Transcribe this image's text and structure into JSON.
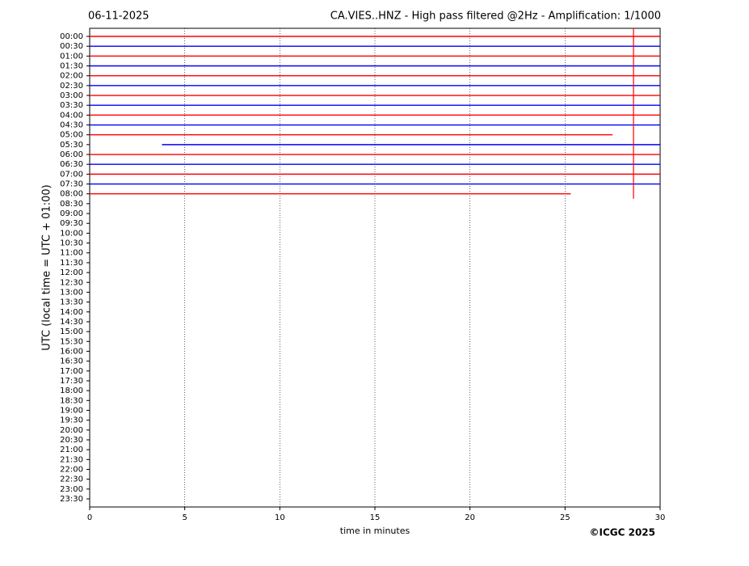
{
  "chart_data": {
    "type": "helicorder",
    "date": "06-11-2025",
    "title": "CA.VIES..HNZ - High pass filtered @2Hz - Amplification: 1/1000",
    "y_label": "UTC (local time = UTC + 01:00)",
    "x_label": "time in minutes",
    "credit": "©ICGC 2025",
    "rows": [
      "00:00",
      "00:30",
      "01:00",
      "01:30",
      "02:00",
      "02:30",
      "03:00",
      "03:30",
      "04:00",
      "04:30",
      "05:00",
      "05:30",
      "06:00",
      "06:30",
      "07:00",
      "07:30",
      "08:00",
      "08:30",
      "09:00",
      "09:30",
      "10:00",
      "10:30",
      "11:00",
      "11:30",
      "12:00",
      "12:30",
      "13:00",
      "13:30",
      "14:00",
      "14:30",
      "15:00",
      "15:30",
      "16:00",
      "16:30",
      "17:00",
      "17:30",
      "18:00",
      "18:30",
      "19:00",
      "19:30",
      "20:00",
      "20:30",
      "21:00",
      "21:30",
      "22:00",
      "22:30",
      "23:00",
      "23:30"
    ],
    "xlim": [
      0,
      30
    ],
    "xticks": [
      0,
      5,
      10,
      15,
      20,
      25,
      30
    ],
    "grid": true,
    "traces": [
      {
        "row": 0,
        "color": "#ff0000",
        "x": [
          0,
          30
        ]
      },
      {
        "row": 1,
        "color": "#0000ff",
        "x": [
          0,
          30
        ]
      },
      {
        "row": 2,
        "color": "#ff0000",
        "x": [
          0,
          30
        ]
      },
      {
        "row": 3,
        "color": "#0000ff",
        "x": [
          0,
          30
        ]
      },
      {
        "row": 4,
        "color": "#ff0000",
        "x": [
          0,
          30
        ]
      },
      {
        "row": 5,
        "color": "#0000ff",
        "x": [
          0,
          30
        ]
      },
      {
        "row": 6,
        "color": "#ff0000",
        "x": [
          0,
          30
        ]
      },
      {
        "row": 7,
        "color": "#0000ff",
        "x": [
          0,
          30
        ]
      },
      {
        "row": 8,
        "color": "#ff0000",
        "x": [
          0,
          30
        ]
      },
      {
        "row": 9,
        "color": "#0000ff",
        "x": [
          0,
          30
        ]
      },
      {
        "row": 10,
        "color": "#ff0000",
        "x": [
          0,
          27.5
        ]
      },
      {
        "row": 11,
        "color": "#0000ff",
        "x": [
          3.8,
          30
        ]
      },
      {
        "row": 12,
        "color": "#ff0000",
        "x": [
          0,
          30
        ]
      },
      {
        "row": 13,
        "color": "#0000ff",
        "x": [
          0,
          30
        ]
      },
      {
        "row": 14,
        "color": "#ff0000",
        "x": [
          0,
          30
        ]
      },
      {
        "row": 15,
        "color": "#0000ff",
        "x": [
          0,
          30
        ]
      },
      {
        "row": 16,
        "color": "#ff0000",
        "x": [
          0,
          25.3
        ]
      }
    ],
    "spike": {
      "x": 28.6,
      "bottom_row": 16.5,
      "color": "#ff0000"
    }
  }
}
